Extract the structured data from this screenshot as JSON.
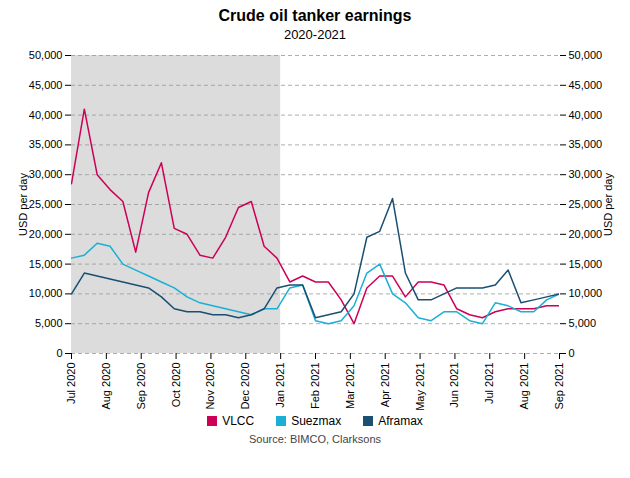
{
  "chart_data": {
    "type": "line",
    "title": "Crude oil tanker earnings",
    "subtitle": "2020-2021",
    "source": "Source: BIMCO, Clarksons",
    "ylabel": "USD per day",
    "y2label": "USD per day",
    "xlim": [
      0,
      14
    ],
    "xticks": [
      {
        "value": 0,
        "label": "Jul 2020"
      },
      {
        "value": 1,
        "label": "Aug 2020"
      },
      {
        "value": 2,
        "label": "Sep 2020"
      },
      {
        "value": 3,
        "label": "Oct 2020"
      },
      {
        "value": 4,
        "label": "Nov 2020"
      },
      {
        "value": 5,
        "label": "Dec 2020"
      },
      {
        "value": 6,
        "label": "Jan 2021"
      },
      {
        "value": 7,
        "label": "Feb 2021"
      },
      {
        "value": 8,
        "label": "Mar 2021"
      },
      {
        "value": 9,
        "label": "Apr 2021"
      },
      {
        "value": 10,
        "label": "May 2021"
      },
      {
        "value": 11,
        "label": "Jun 2021"
      },
      {
        "value": 12,
        "label": "Jul 2021"
      },
      {
        "value": 13,
        "label": "Aug 2021"
      },
      {
        "value": 14,
        "label": "Sep 2021"
      }
    ],
    "ylim": [
      0,
      50000
    ],
    "yticks": [
      0,
      {
        "value": 5000,
        "label": "5,000"
      },
      {
        "value": 10000,
        "label": "10,000"
      },
      {
        "value": 15000,
        "label": "15,000"
      },
      {
        "value": 20000,
        "label": "20,000"
      },
      {
        "value": 25000,
        "label": "25,000"
      },
      {
        "value": 30000,
        "label": "30,000"
      },
      {
        "value": 35000,
        "label": "35,000"
      },
      {
        "value": 40000,
        "label": "40,000"
      },
      {
        "value": 45000,
        "label": "45,000"
      },
      {
        "value": 50000,
        "label": "50,000"
      }
    ],
    "y2lim": [
      0,
      50000
    ],
    "y2ticks": [
      0,
      {
        "value": 5000,
        "label": "5,000"
      },
      {
        "value": 10000,
        "label": "10,000"
      },
      {
        "value": 15000,
        "label": "15,000"
      },
      {
        "value": 20000,
        "label": "20,000"
      },
      {
        "value": 25000,
        "label": "25,000"
      },
      {
        "value": 30000,
        "label": "30,000"
      },
      {
        "value": 35000,
        "label": "35,000"
      },
      {
        "value": 40000,
        "label": "40,000"
      },
      {
        "value": 45000,
        "label": "45,000"
      },
      {
        "value": 50000,
        "label": "50,000"
      }
    ],
    "grid": true,
    "legend": "bottom",
    "shade": {
      "from": 0,
      "to": 6,
      "color": "#dcdcdc"
    },
    "x": [
      0,
      0.368421,
      0.736842,
      1.105263,
      1.473684,
      1.842105,
      2.210526,
      2.578947,
      2.947368,
      3.315789,
      3.684211,
      4.052632,
      4.421053,
      4.789474,
      5.157895,
      5.526316,
      5.894737,
      6.263158,
      6.631579,
      7,
      7.368421,
      7.736842,
      8.105263,
      8.473684,
      8.842105,
      9.210526,
      9.578947,
      9.947368,
      10.315789,
      10.684211,
      11.052632,
      11.421053,
      11.789474,
      12.157895,
      12.526316,
      12.894737,
      13.263158,
      13.631579,
      14
    ],
    "series": [
      {
        "name": "VLCC",
        "color": "#cc0057",
        "values": [
          28500,
          41000,
          30000,
          27500,
          25500,
          17000,
          27000,
          32000,
          21000,
          20000,
          16500,
          16000,
          19500,
          24500,
          25500,
          18000,
          16000,
          12000,
          13000,
          12000,
          12000,
          9000,
          5000,
          11000,
          13000,
          13000,
          9500,
          12000,
          12000,
          11500,
          7500,
          6500,
          6000,
          7000,
          7500,
          7500,
          7500,
          8000,
          8000
        ]
      },
      {
        "name": "Suezmax",
        "color": "#1ab0d5",
        "values": [
          16000,
          16500,
          18500,
          18000,
          15000,
          14000,
          13000,
          12000,
          11000,
          9500,
          8500,
          8000,
          7500,
          7000,
          6500,
          7500,
          7500,
          11000,
          11500,
          5500,
          5000,
          5500,
          8000,
          13500,
          15000,
          10000,
          8500,
          6000,
          5500,
          7000,
          7000,
          5500,
          5000,
          8500,
          8000,
          7000,
          7000,
          9000,
          10000
        ]
      },
      {
        "name": "Aframax",
        "color": "#1a4f72",
        "values": [
          10000,
          13500,
          13000,
          12500,
          12000,
          11500,
          11000,
          9500,
          7500,
          7000,
          7000,
          6500,
          6500,
          6000,
          6500,
          7500,
          11000,
          11500,
          11500,
          6000,
          6500,
          7000,
          10000,
          19500,
          20500,
          26000,
          13500,
          9000,
          9000,
          10000,
          11000,
          11000,
          11000,
          11500,
          14000,
          8500,
          9000,
          9500,
          10000
        ]
      }
    ]
  }
}
